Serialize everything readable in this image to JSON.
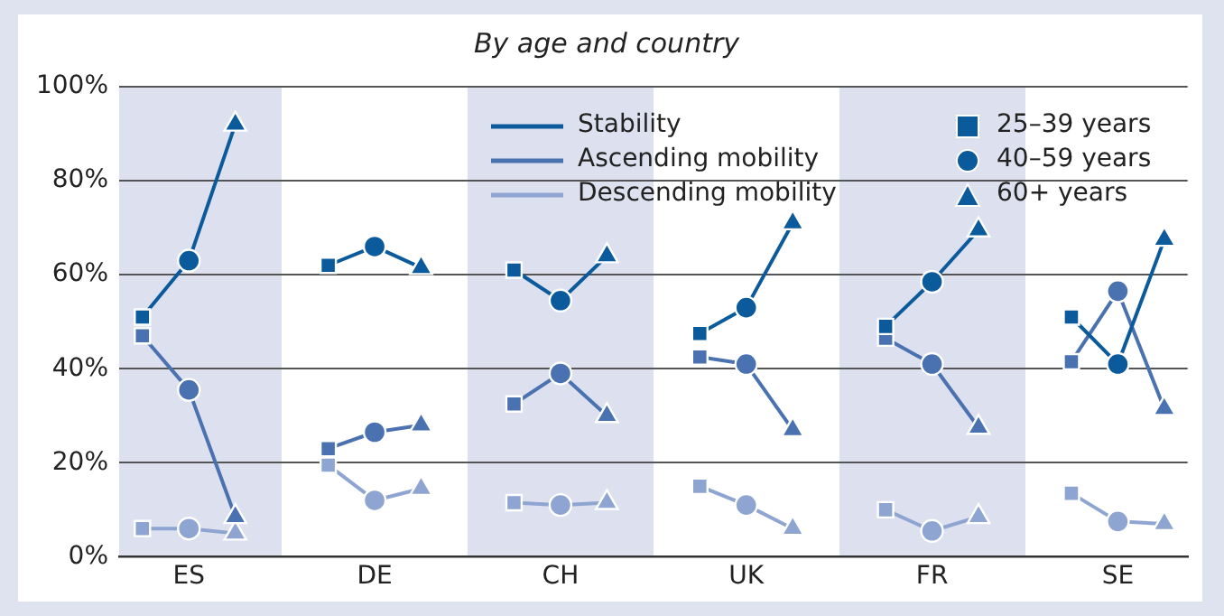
{
  "chart_data": {
    "type": "line",
    "title": "By age and country",
    "categories": [
      null,
      "ES",
      null,
      null,
      null,
      "DE",
      null,
      null,
      null,
      "CH",
      null,
      null,
      null,
      "UK",
      null,
      null,
      null,
      "FR",
      null,
      null,
      null,
      "SE",
      null
    ],
    "ylim": [
      0,
      100
    ],
    "yticks": [
      {
        "value": 0,
        "label": "0%"
      },
      {
        "value": 20,
        "label": "20%"
      },
      {
        "value": 40,
        "label": "40%"
      },
      {
        "value": 60,
        "label": "60%"
      },
      {
        "value": 80,
        "label": "80%"
      },
      {
        "value": 100,
        "label": "100%"
      }
    ],
    "grid": "y",
    "legend": "top",
    "series": [
      {
        "name": "Stability",
        "marker": "none",
        "color": "#0b5a9c",
        "values": [
          51,
          63,
          92,
          null,
          62,
          66,
          61.5,
          null,
          61,
          54.5,
          64,
          null,
          47.5,
          53,
          71,
          null,
          49,
          58.5,
          69.5,
          null,
          51,
          41,
          67.5
        ]
      },
      {
        "name": "Ascending mobility",
        "marker": "none",
        "color": "#4a72b0",
        "values": [
          47,
          35.5,
          8.5,
          null,
          23,
          26.5,
          28,
          null,
          32.5,
          39,
          30,
          null,
          42.5,
          41,
          27,
          null,
          46.5,
          41,
          27.5,
          null,
          41.5,
          56.5,
          31.5
        ]
      },
      {
        "name": "Descending mobility",
        "marker": "none",
        "color": "#8fa5d1",
        "values": [
          6,
          6,
          5,
          null,
          19.5,
          12,
          14.5,
          null,
          11.5,
          11,
          11.5,
          null,
          15,
          11,
          6,
          null,
          10,
          5.5,
          8.5,
          null,
          13.5,
          7.5,
          7
        ]
      },
      {
        "name": "25–39 years",
        "type": "scatter",
        "marker": "square",
        "color": "#0b5a9c",
        "values": [
          51,
          null,
          null,
          null,
          62,
          null,
          null,
          null,
          61,
          null,
          null,
          null,
          47.5,
          null,
          null,
          null,
          49,
          null,
          null,
          null,
          51,
          null,
          null
        ]
      },
      {
        "type": "scatter",
        "marker": "square",
        "color": "#4a72b0",
        "values": [
          47,
          null,
          null,
          null,
          23,
          null,
          null,
          null,
          32.5,
          null,
          null,
          null,
          42.5,
          null,
          null,
          null,
          46.5,
          null,
          null,
          null,
          41.5,
          null,
          null
        ]
      },
      {
        "type": "scatter",
        "marker": "square",
        "color": "#8fa5d1",
        "values": [
          6,
          null,
          null,
          null,
          19.5,
          null,
          null,
          null,
          11.5,
          null,
          null,
          null,
          15,
          null,
          null,
          null,
          10,
          null,
          null,
          null,
          13.5,
          null,
          null
        ]
      },
      {
        "name": "40–59 years",
        "type": "scatter",
        "marker": "circle",
        "color": "#0b5a9c",
        "values": [
          null,
          63,
          null,
          null,
          null,
          66,
          null,
          null,
          null,
          54.5,
          null,
          null,
          null,
          53,
          null,
          null,
          null,
          58.5,
          null,
          null,
          null,
          41,
          null
        ]
      },
      {
        "type": "scatter",
        "marker": "circle",
        "color": "#4a72b0",
        "values": [
          null,
          35.5,
          null,
          null,
          null,
          26.5,
          null,
          null,
          null,
          39,
          null,
          null,
          null,
          41,
          null,
          null,
          null,
          41,
          null,
          null,
          null,
          56.5,
          null
        ]
      },
      {
        "type": "scatter",
        "marker": "circle",
        "color": "#8fa5d1",
        "values": [
          null,
          6,
          null,
          null,
          null,
          12,
          null,
          null,
          null,
          11,
          null,
          null,
          null,
          11,
          null,
          null,
          null,
          5.5,
          null,
          null,
          null,
          7.5,
          null
        ]
      },
      {
        "name": "60+ years",
        "type": "scatter",
        "marker": "triangle",
        "color": "#0b5a9c",
        "values": [
          null,
          null,
          92,
          null,
          null,
          null,
          61.5,
          null,
          null,
          null,
          64,
          null,
          null,
          null,
          71,
          null,
          null,
          null,
          69.5,
          null,
          null,
          null,
          67.5
        ]
      },
      {
        "type": "scatter",
        "marker": "triangle",
        "color": "#4a72b0",
        "values": [
          null,
          null,
          8.5,
          null,
          null,
          null,
          28,
          null,
          null,
          null,
          30,
          null,
          null,
          null,
          27,
          null,
          null,
          null,
          27.5,
          null,
          null,
          null,
          31.5
        ]
      },
      {
        "type": "scatter",
        "marker": "triangle",
        "color": "#8fa5d1",
        "values": [
          null,
          null,
          5,
          null,
          null,
          null,
          14.5,
          null,
          null,
          null,
          11.5,
          null,
          null,
          null,
          6,
          null,
          null,
          null,
          8.5,
          null,
          null,
          null,
          7
        ]
      }
    ]
  }
}
